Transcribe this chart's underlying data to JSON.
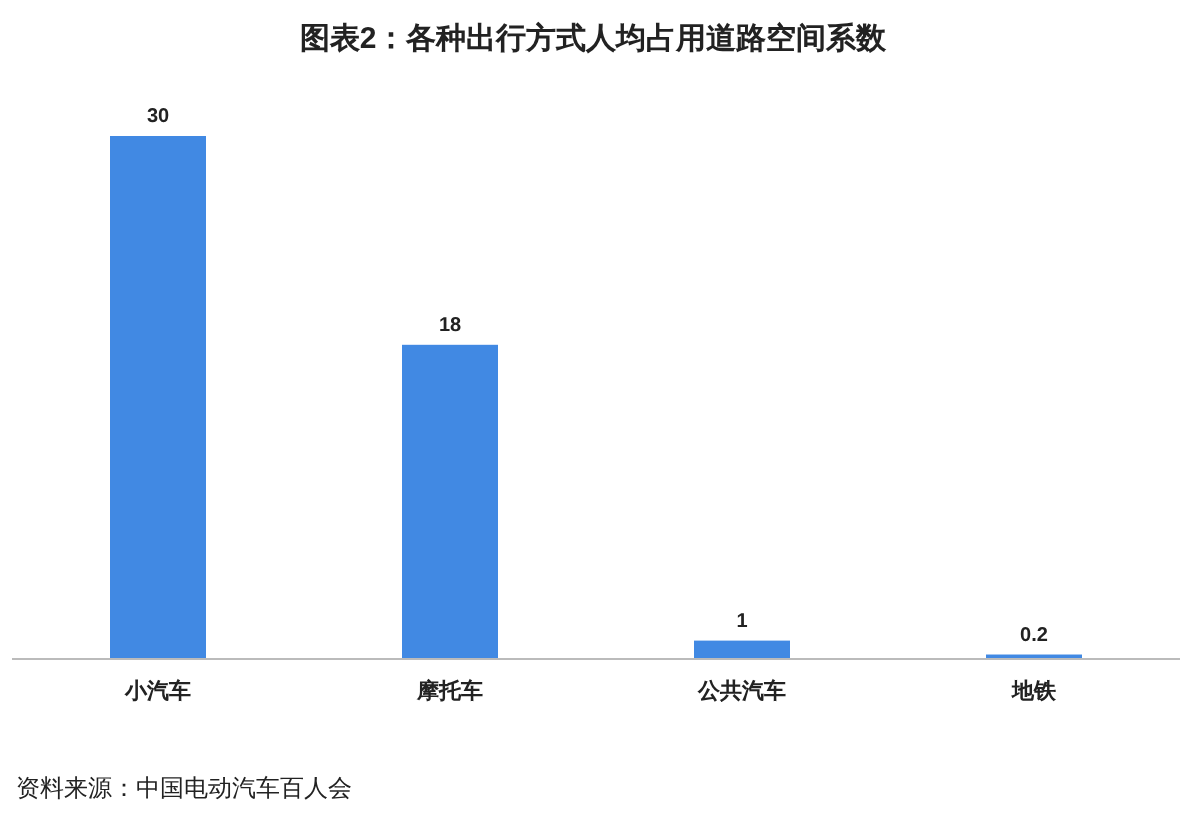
{
  "chart_data": {
    "type": "bar",
    "title": "图表2：各种出行方式人均占用道路空间系数",
    "categories": [
      "小汽车",
      "摩托车",
      "公共汽车",
      "地铁"
    ],
    "values": [
      30,
      18,
      1,
      0.2
    ],
    "color": "#4189e3",
    "data_labels": true,
    "annotations": [
      "资料来源：中国电动汽车百人会"
    ]
  }
}
